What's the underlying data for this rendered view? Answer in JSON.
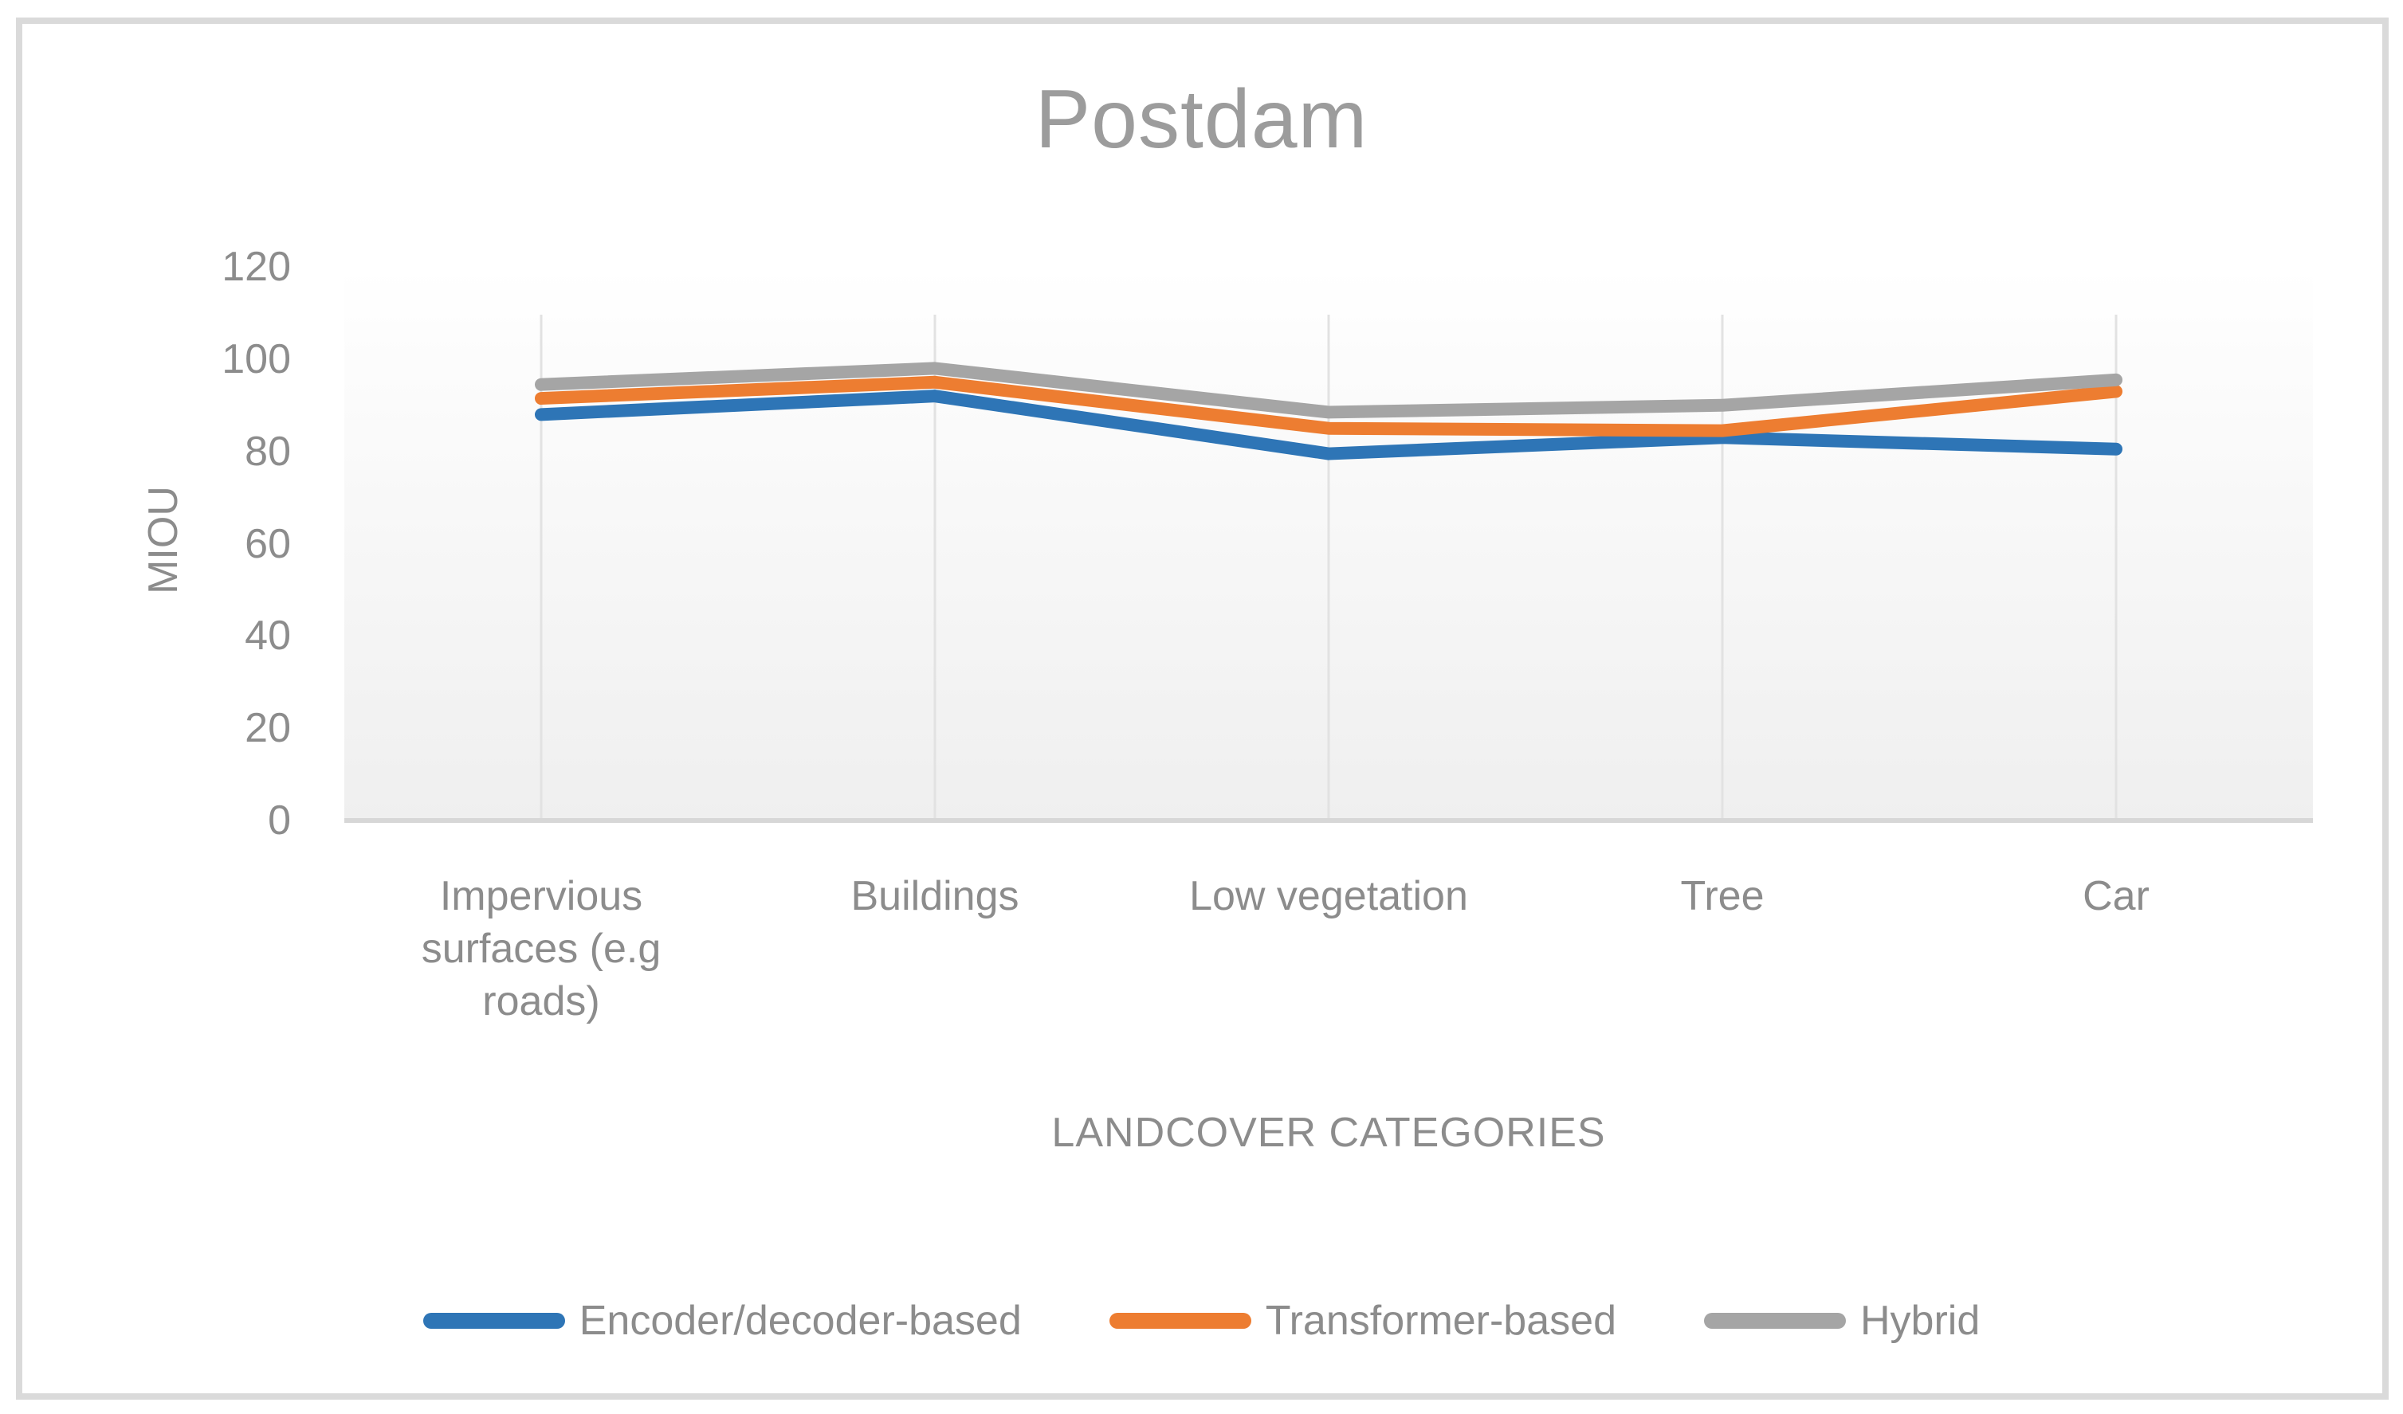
{
  "chart_data": {
    "type": "line",
    "title": "Postdam",
    "xlabel": "LANDCOVER CATEGORIES",
    "ylabel": "MIOU",
    "ylim": [
      0,
      120
    ],
    "yticks": [
      0,
      20,
      40,
      60,
      80,
      100,
      120
    ],
    "grid": "vertical-category-gridlines",
    "legend_position": "bottom",
    "categories": [
      "Impervious surfaces (e.g roads)",
      "Buildings",
      "Low vegetation",
      "Tree",
      "Car"
    ],
    "category_label_lines": [
      [
        "Impervious",
        "surfaces (e.g",
        "roads)"
      ],
      [
        "Buildings"
      ],
      [
        "Low vegetation"
      ],
      [
        "Tree"
      ],
      [
        "Car"
      ]
    ],
    "series": [
      {
        "name": "Encoder/decoder-based",
        "color": "#2E75B6",
        "values": [
          88,
          92,
          79.5,
          83,
          80.5
        ]
      },
      {
        "name": "Transformer-based",
        "color": "#ED7D31",
        "values": [
          91.5,
          95,
          85,
          84.5,
          93
        ]
      },
      {
        "name": "Hybrid",
        "color": "#A5A5A5",
        "values": [
          94.5,
          98,
          88.5,
          90,
          95.5
        ]
      }
    ]
  }
}
